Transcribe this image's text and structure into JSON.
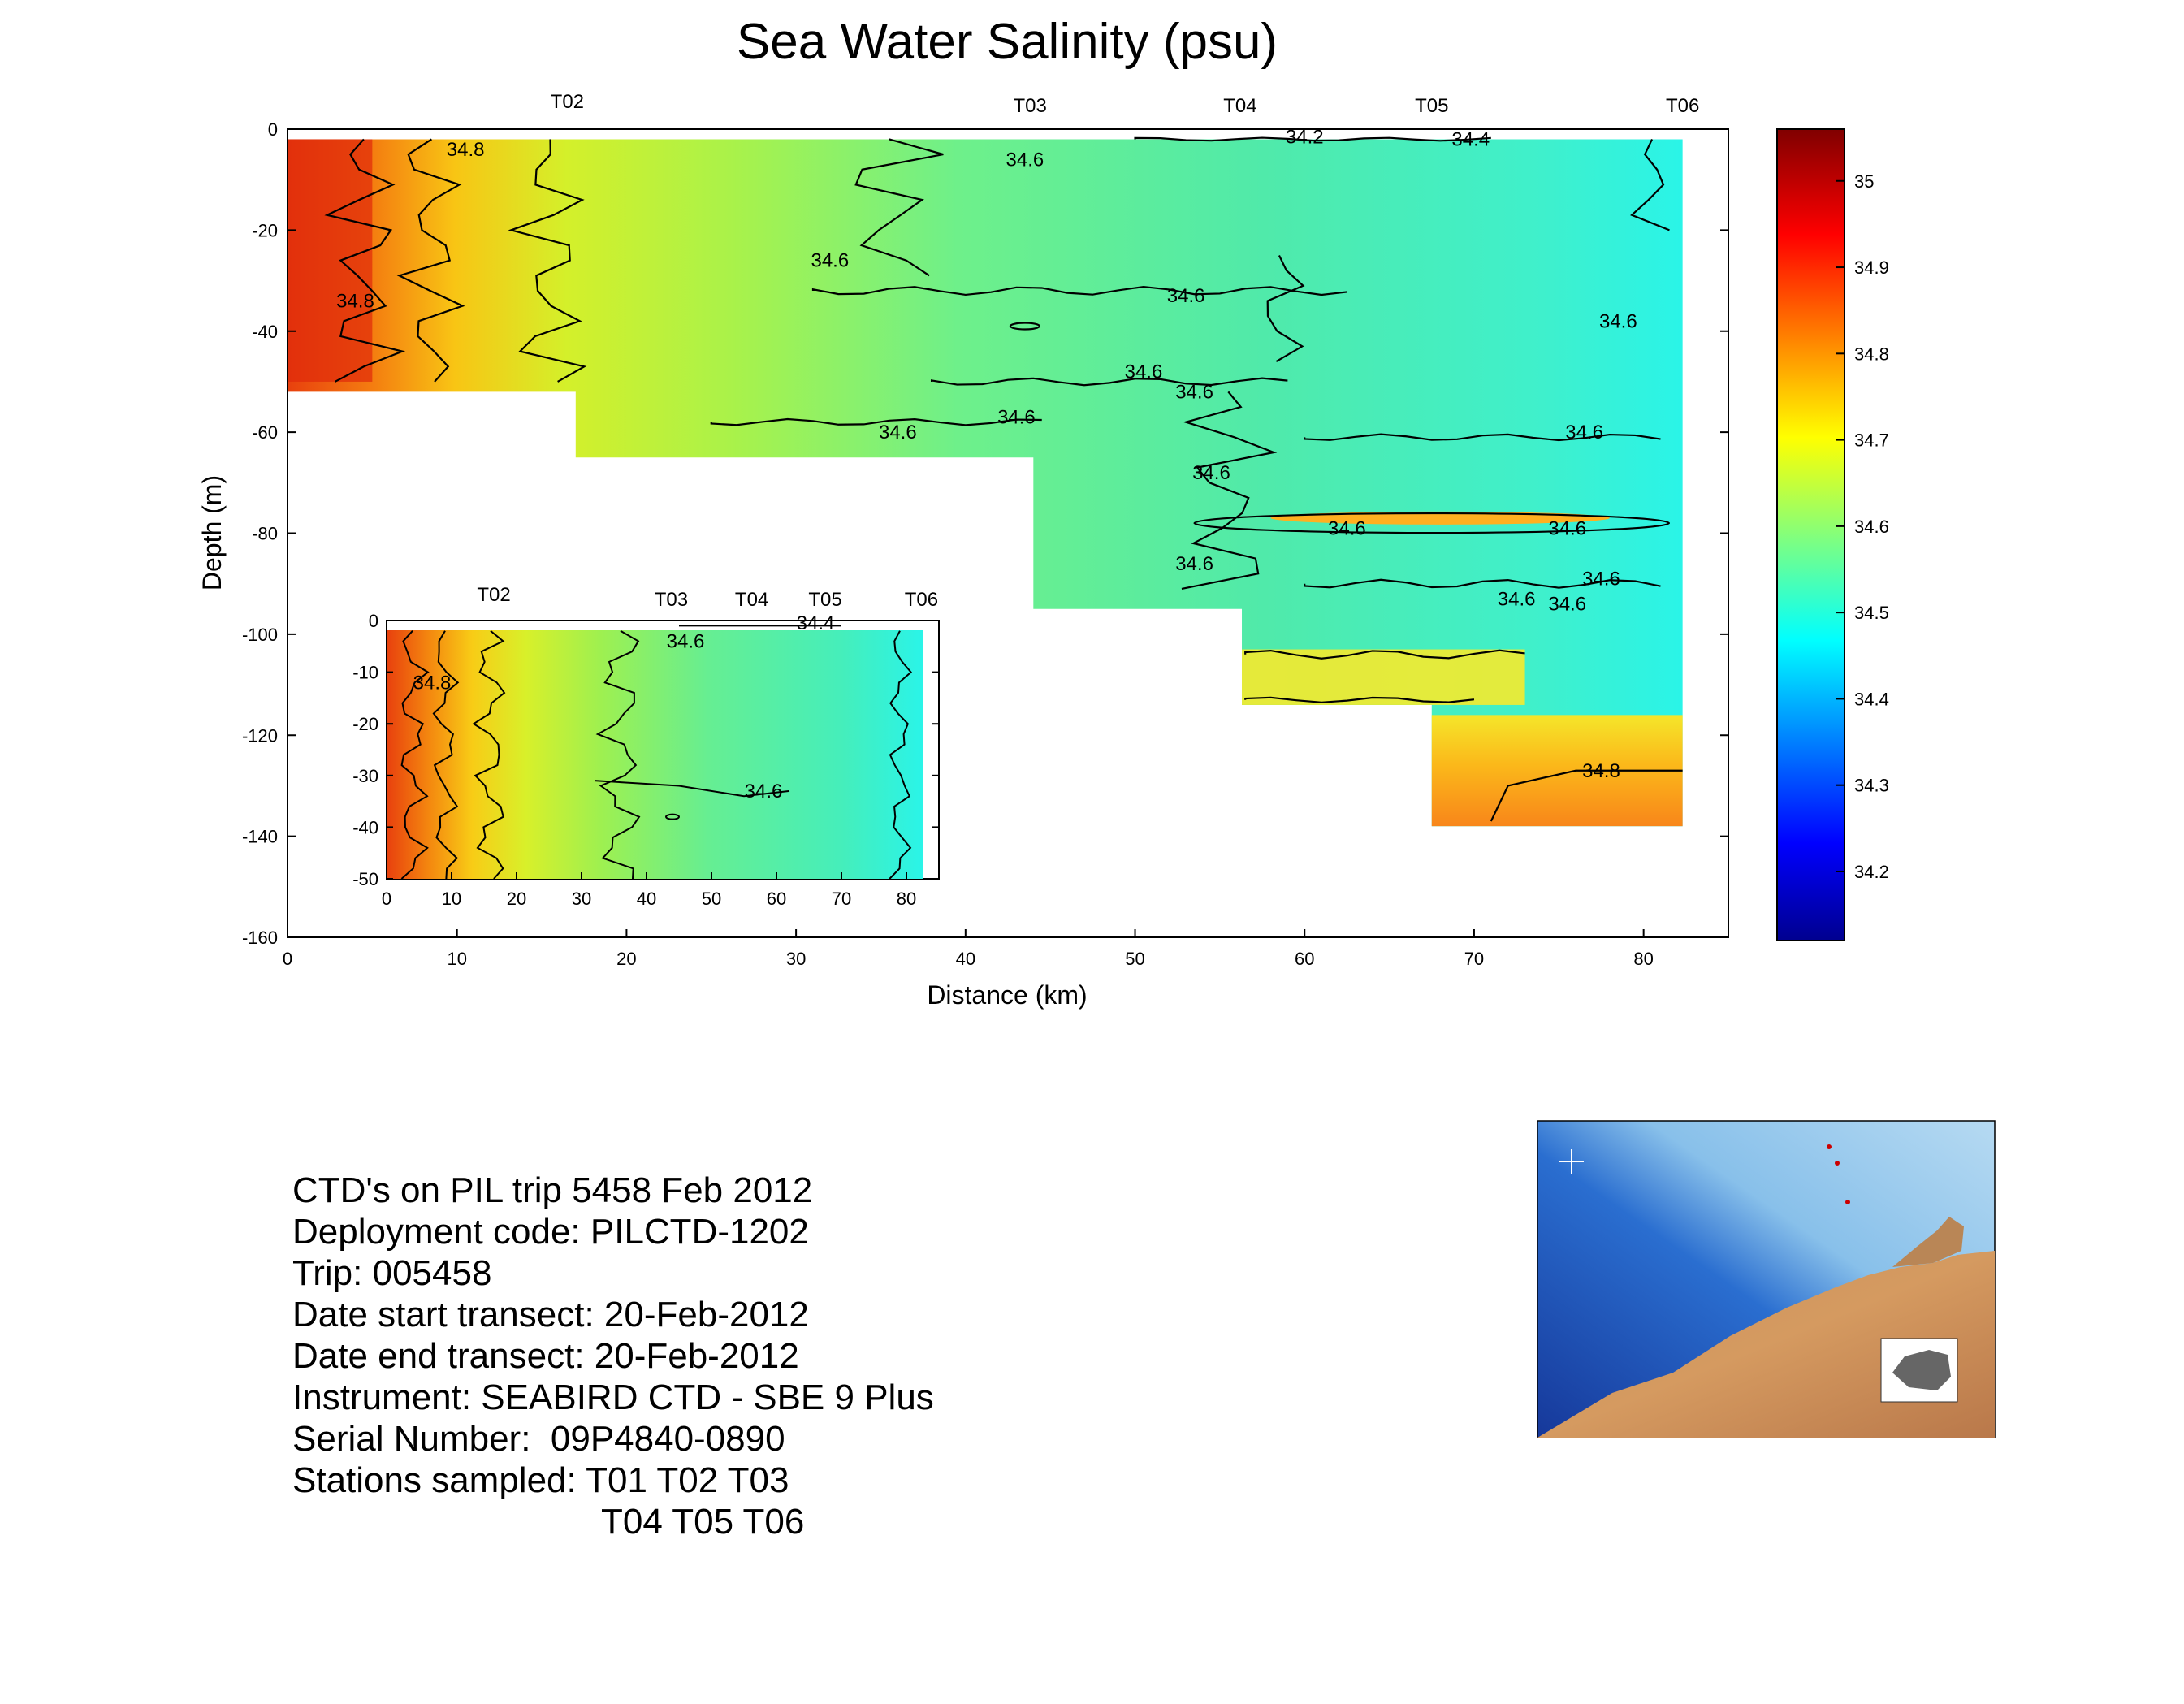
{
  "chart_data": [
    {
      "type": "heatmap",
      "title": "Sea Water Salinity (psu)",
      "xlabel": "Distance (km)",
      "ylabel": "Depth (m)",
      "xlim": [
        0,
        85
      ],
      "ylim": [
        -160,
        0
      ],
      "x_ticks": [
        0,
        10,
        20,
        30,
        40,
        50,
        60,
        70,
        80
      ],
      "y_ticks": [
        0,
        -20,
        -40,
        -60,
        -80,
        -100,
        -120,
        -140,
        -160
      ],
      "stations": [
        {
          "name": "T02",
          "x": 16.5
        },
        {
          "name": "T03",
          "x": 43.8
        },
        {
          "name": "T04",
          "x": 56.2
        },
        {
          "name": "T05",
          "x": 67.5
        },
        {
          "name": "T06",
          "x": 82.3
        }
      ],
      "data_coverage": [
        {
          "x0": 0,
          "x1": 17,
          "max_depth": -52
        },
        {
          "x0": 17,
          "x1": 44,
          "max_depth": -65
        },
        {
          "x0": 44,
          "x1": 56.3,
          "max_depth": -95
        },
        {
          "x0": 56.3,
          "x1": 67.5,
          "max_depth": -114
        },
        {
          "x0": 67.5,
          "x1": 82.3,
          "max_depth": -138
        }
      ],
      "contour_labels": [
        {
          "text": "34.8",
          "x": 10.5,
          "y": -4
        },
        {
          "text": "34.8",
          "x": 4,
          "y": -34
        },
        {
          "text": "34.6",
          "x": 43.5,
          "y": -6
        },
        {
          "text": "34.6",
          "x": 32,
          "y": -26
        },
        {
          "text": "34.6",
          "x": 53,
          "y": -33
        },
        {
          "text": "34.6",
          "x": 78.5,
          "y": -38
        },
        {
          "text": "34.6",
          "x": 50.5,
          "y": -48
        },
        {
          "text": "34.6",
          "x": 53.5,
          "y": -52
        },
        {
          "text": "34.6",
          "x": 36,
          "y": -60
        },
        {
          "text": "34.6",
          "x": 43,
          "y": -57
        },
        {
          "text": "34.6",
          "x": 76.5,
          "y": -60
        },
        {
          "text": "34.6",
          "x": 54.5,
          "y": -68
        },
        {
          "text": "34.6",
          "x": 62.5,
          "y": -79
        },
        {
          "text": "34.6",
          "x": 75.5,
          "y": -79
        },
        {
          "text": "34.6",
          "x": 53.5,
          "y": -86
        },
        {
          "text": "34.6",
          "x": 77.5,
          "y": -89
        },
        {
          "text": "34.6",
          "x": 72.5,
          "y": -93
        },
        {
          "text": "34.6",
          "x": 75.5,
          "y": -94
        },
        {
          "text": "34.2",
          "x": 60,
          "y": -1.5
        },
        {
          "text": "34.4",
          "x": 69.8,
          "y": -2
        },
        {
          "text": "34.8",
          "x": 77.5,
          "y": -127
        }
      ],
      "colorbar": {
        "ticks": [
          35,
          34.9,
          34.8,
          34.7,
          34.6,
          34.5,
          34.4,
          34.3,
          34.2
        ],
        "range": [
          34.12,
          35.06
        ],
        "colormap": [
          "#00008f",
          "#0000ff",
          "#00ffff",
          "#ffff00",
          "#ff0000",
          "#800000"
        ]
      },
      "grid": false
    },
    {
      "type": "heatmap",
      "title": "",
      "xlim": [
        0,
        85
      ],
      "ylim": [
        -50,
        0
      ],
      "x_ticks": [
        0,
        10,
        20,
        30,
        40,
        50,
        60,
        70,
        80
      ],
      "y_ticks": [
        0,
        -10,
        -20,
        -30,
        -40,
        -50
      ],
      "stations": [
        {
          "name": "T02",
          "x": 16.5
        },
        {
          "name": "T03",
          "x": 43.8
        },
        {
          "name": "T04",
          "x": 56.2
        },
        {
          "name": "T05",
          "x": 67.5
        },
        {
          "name": "T06",
          "x": 82.3
        }
      ],
      "contour_labels": [
        {
          "text": "34.8",
          "x": 7,
          "y": -12
        },
        {
          "text": "34.6",
          "x": 46,
          "y": -4
        },
        {
          "text": "34.4",
          "x": 66,
          "y": -0.5
        },
        {
          "text": "34.6",
          "x": 58,
          "y": -33
        }
      ]
    }
  ],
  "info": {
    "lines": [
      "CTD's on PIL trip 5458 Feb 2012",
      "Deployment code: PILCTD-1202",
      "Trip: 005458",
      "Date start transect: 20-Feb-2012",
      "Date end transect: 20-Feb-2012",
      "Instrument: SEABIRD CTD - SBE 9 Plus",
      "Serial Number:  09P4840-0890",
      "Stations sampled: T01 T02 T03"
    ],
    "continuation": "T04 T05 T06"
  },
  "map": {
    "colors": {
      "ocean_deep": "#1a4fb8",
      "ocean_shelf": "#a9d4ee",
      "land": "#c98a55"
    }
  }
}
